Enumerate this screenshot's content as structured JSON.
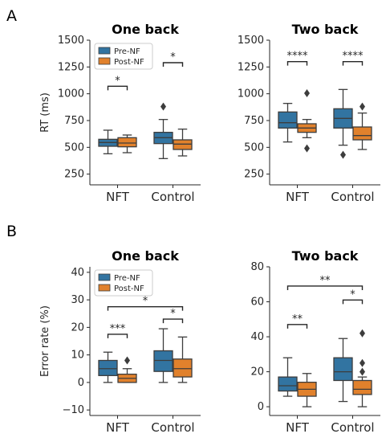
{
  "panel_labels": [
    "A",
    "B"
  ],
  "colors": {
    "pre": "#3274a1",
    "post": "#e1812c",
    "line": "#3d3d3d"
  },
  "legend": [
    "Pre-NF",
    "Post-NF"
  ],
  "chart_data": [
    {
      "type": "box",
      "panel": "A",
      "title": "One back",
      "xlabel": "",
      "ylabel": "RT (ms)",
      "categories": [
        "NFT",
        "Control"
      ],
      "ylim": [
        150,
        1500
      ],
      "yticks": [
        250,
        500,
        750,
        1000,
        1250,
        1500
      ],
      "ytick_labels": [
        "250",
        "500",
        "750",
        "1000",
        "1250",
        "1500"
      ],
      "legend": "upper-left",
      "series": [
        {
          "name": "Pre-NF",
          "boxes": [
            {
              "whislo": 440,
              "q1": 510,
              "med": 545,
              "q3": 575,
              "whishi": 660,
              "fliers": []
            },
            {
              "whislo": 395,
              "q1": 535,
              "med": 590,
              "q3": 640,
              "whishi": 760,
              "fliers": [
                880
              ]
            }
          ]
        },
        {
          "name": "Post-NF",
          "boxes": [
            {
              "whislo": 450,
              "q1": 505,
              "med": 540,
              "q3": 590,
              "whishi": 615,
              "fliers": []
            },
            {
              "whislo": 420,
              "q1": 480,
              "med": 530,
              "q3": 570,
              "whishi": 670,
              "fliers": []
            }
          ]
        }
      ],
      "annotations": [
        {
          "pair": [
            0,
            0,
            0,
            1
          ],
          "y": 1070,
          "text": "*"
        },
        {
          "pair": [
            1,
            0,
            1,
            1
          ],
          "y": 1290,
          "text": "*"
        }
      ]
    },
    {
      "type": "box",
      "panel": "A",
      "title": "Two back",
      "xlabel": "",
      "ylabel": "",
      "categories": [
        "NFT",
        "Control"
      ],
      "ylim": [
        150,
        1500
      ],
      "yticks": [
        250,
        500,
        750,
        1000,
        1250,
        1500
      ],
      "ytick_labels": [
        "250",
        "500",
        "750",
        "1000",
        "1250",
        "1500"
      ],
      "series": [
        {
          "name": "Pre-NF",
          "boxes": [
            {
              "whislo": 550,
              "q1": 680,
              "med": 730,
              "q3": 830,
              "whishi": 910,
              "fliers": []
            },
            {
              "whislo": 520,
              "q1": 680,
              "med": 770,
              "q3": 860,
              "whishi": 1040,
              "fliers": [
                430
              ]
            }
          ]
        },
        {
          "name": "Post-NF",
          "boxes": [
            {
              "whislo": 590,
              "q1": 640,
              "med": 680,
              "q3": 720,
              "whishi": 760,
              "fliers": [
                490,
                1005
              ]
            },
            {
              "whislo": 480,
              "q1": 570,
              "med": 610,
              "q3": 690,
              "whishi": 820,
              "fliers": [
                880
              ]
            }
          ]
        }
      ],
      "annotations": [
        {
          "pair": [
            0,
            0,
            0,
            1
          ],
          "y": 1300,
          "text": "****"
        },
        {
          "pair": [
            1,
            0,
            1,
            1
          ],
          "y": 1300,
          "text": "****"
        }
      ]
    },
    {
      "type": "box",
      "panel": "B",
      "title": "One back",
      "xlabel": "",
      "ylabel": "Error rate (%)",
      "categories": [
        "NFT",
        "Control"
      ],
      "ylim": [
        -12,
        42
      ],
      "yticks": [
        -10,
        0,
        10,
        20,
        30,
        40
      ],
      "ytick_labels": [
        "−10",
        "0",
        "10",
        "20",
        "30",
        "40"
      ],
      "legend": "upper-left",
      "series": [
        {
          "name": "Pre-NF",
          "boxes": [
            {
              "whislo": 0,
              "q1": 2.5,
              "med": 5,
              "q3": 8,
              "whishi": 11,
              "fliers": []
            },
            {
              "whislo": 0,
              "q1": 4,
              "med": 8,
              "q3": 11.5,
              "whishi": 19.5,
              "fliers": []
            }
          ]
        },
        {
          "name": "Post-NF",
          "boxes": [
            {
              "whislo": 0,
              "q1": 0,
              "med": 1.5,
              "q3": 3,
              "whishi": 5,
              "fliers": [
                8
              ]
            },
            {
              "whislo": 0,
              "q1": 2,
              "med": 5,
              "q3": 8.5,
              "whishi": 16.5,
              "fliers": []
            }
          ]
        }
      ],
      "annotations": [
        {
          "pair": [
            0,
            0,
            0,
            1
          ],
          "y": 17.5,
          "text": "***"
        },
        {
          "pair": [
            1,
            0,
            1,
            1
          ],
          "y": 23,
          "text": "*"
        },
        {
          "pair": [
            0,
            0,
            1,
            1
          ],
          "y": 27.5,
          "text": "*"
        }
      ]
    },
    {
      "type": "box",
      "panel": "B",
      "title": "Two back",
      "xlabel": "",
      "ylabel": "",
      "categories": [
        "NFT",
        "Control"
      ],
      "ylim": [
        -5,
        80
      ],
      "yticks": [
        0,
        20,
        40,
        60,
        80
      ],
      "ytick_labels": [
        "0",
        "20",
        "40",
        "60",
        "80"
      ],
      "series": [
        {
          "name": "Pre-NF",
          "boxes": [
            {
              "whislo": 6,
              "q1": 9,
              "med": 12,
              "q3": 17,
              "whishi": 28,
              "fliers": []
            },
            {
              "whislo": 3,
              "q1": 15,
              "med": 20,
              "q3": 28,
              "whishi": 39,
              "fliers": []
            }
          ]
        },
        {
          "name": "Post-NF",
          "boxes": [
            {
              "whislo": 0,
              "q1": 6,
              "med": 10,
              "q3": 14,
              "whishi": 19,
              "fliers": []
            },
            {
              "whislo": 0,
              "q1": 7,
              "med": 10,
              "q3": 15,
              "whishi": 17,
              "fliers": [
                20,
                25,
                42
              ]
            }
          ]
        }
      ],
      "annotations": [
        {
          "pair": [
            0,
            0,
            0,
            1
          ],
          "y": 47,
          "text": "**"
        },
        {
          "pair": [
            1,
            0,
            1,
            1
          ],
          "y": 61,
          "text": "*"
        },
        {
          "pair": [
            0,
            0,
            1,
            1
          ],
          "y": 69,
          "text": "**"
        }
      ]
    }
  ]
}
